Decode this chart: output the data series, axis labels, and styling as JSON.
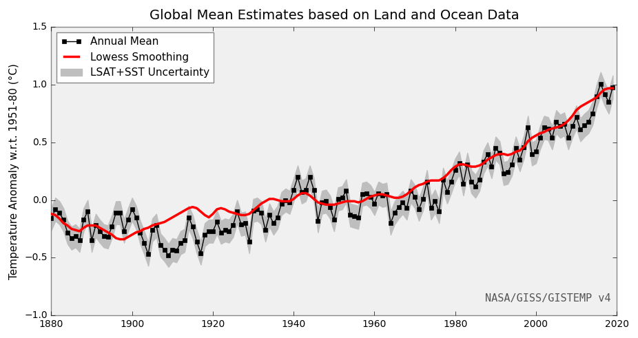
{
  "title": "Global Mean Estimates based on Land and Ocean Data",
  "ylabel": "Temperature Anomaly w.r.t. 1951-80 (°C)",
  "annotation": "NASA/GISS/GISTEMP v4",
  "xlim": [
    1880,
    2020
  ],
  "ylim": [
    -1.0,
    1.5
  ],
  "yticks": [
    -1.0,
    -0.5,
    0.0,
    0.5,
    1.0,
    1.5
  ],
  "xticks": [
    1880,
    1900,
    1920,
    1940,
    1960,
    1980,
    2000,
    2020
  ],
  "legend_labels": [
    "Annual Mean",
    "Lowess Smoothing",
    "LSAT+SST Uncertainty"
  ],
  "annual_mean": {
    "years": [
      1880,
      1881,
      1882,
      1883,
      1884,
      1885,
      1886,
      1887,
      1888,
      1889,
      1890,
      1891,
      1892,
      1893,
      1894,
      1895,
      1896,
      1897,
      1898,
      1899,
      1900,
      1901,
      1902,
      1903,
      1904,
      1905,
      1906,
      1907,
      1908,
      1909,
      1910,
      1911,
      1912,
      1913,
      1914,
      1915,
      1916,
      1917,
      1918,
      1919,
      1920,
      1921,
      1922,
      1923,
      1924,
      1925,
      1926,
      1927,
      1928,
      1929,
      1930,
      1931,
      1932,
      1933,
      1934,
      1935,
      1936,
      1937,
      1938,
      1939,
      1940,
      1941,
      1942,
      1943,
      1944,
      1945,
      1946,
      1947,
      1948,
      1949,
      1950,
      1951,
      1952,
      1953,
      1954,
      1955,
      1956,
      1957,
      1958,
      1959,
      1960,
      1961,
      1962,
      1963,
      1964,
      1965,
      1966,
      1967,
      1968,
      1969,
      1970,
      1971,
      1972,
      1973,
      1974,
      1975,
      1976,
      1977,
      1978,
      1979,
      1980,
      1981,
      1982,
      1983,
      1984,
      1985,
      1986,
      1987,
      1988,
      1989,
      1990,
      1991,
      1992,
      1993,
      1994,
      1995,
      1996,
      1997,
      1998,
      1999,
      2000,
      2001,
      2002,
      2003,
      2004,
      2005,
      2006,
      2007,
      2008,
      2009,
      2010,
      2011,
      2012,
      2013,
      2014,
      2015,
      2016,
      2017,
      2018,
      2019
    ],
    "values": [
      -0.16,
      -0.08,
      -0.11,
      -0.17,
      -0.28,
      -0.33,
      -0.31,
      -0.35,
      -0.17,
      -0.1,
      -0.35,
      -0.22,
      -0.27,
      -0.31,
      -0.32,
      -0.23,
      -0.11,
      -0.11,
      -0.27,
      -0.17,
      -0.08,
      -0.15,
      -0.28,
      -0.37,
      -0.47,
      -0.26,
      -0.22,
      -0.39,
      -0.43,
      -0.48,
      -0.43,
      -0.44,
      -0.37,
      -0.35,
      -0.15,
      -0.23,
      -0.36,
      -0.46,
      -0.3,
      -0.27,
      -0.27,
      -0.19,
      -0.28,
      -0.26,
      -0.27,
      -0.22,
      -0.1,
      -0.21,
      -0.2,
      -0.36,
      -0.09,
      -0.08,
      -0.11,
      -0.26,
      -0.13,
      -0.2,
      -0.15,
      -0.03,
      -0.0,
      -0.02,
      0.09,
      0.2,
      0.07,
      0.09,
      0.2,
      0.09,
      -0.18,
      -0.02,
      -0.01,
      -0.06,
      -0.17,
      0.01,
      0.02,
      0.08,
      -0.13,
      -0.14,
      -0.15,
      0.05,
      0.06,
      0.03,
      -0.03,
      0.06,
      0.04,
      0.05,
      -0.2,
      -0.11,
      -0.06,
      -0.02,
      -0.07,
      0.08,
      0.03,
      -0.08,
      0.01,
      0.16,
      -0.07,
      -0.01,
      -0.1,
      0.18,
      0.07,
      0.16,
      0.26,
      0.32,
      0.14,
      0.31,
      0.16,
      0.12,
      0.18,
      0.33,
      0.4,
      0.29,
      0.45,
      0.41,
      0.23,
      0.24,
      0.31,
      0.45,
      0.35,
      0.46,
      0.63,
      0.4,
      0.42,
      0.54,
      0.63,
      0.62,
      0.54,
      0.68,
      0.64,
      0.66,
      0.54,
      0.64,
      0.72,
      0.61,
      0.65,
      0.68,
      0.75,
      0.9,
      1.01,
      0.92,
      0.85,
      0.98
    ]
  },
  "uncertainty": {
    "years": [
      1880,
      1881,
      1882,
      1883,
      1884,
      1885,
      1886,
      1887,
      1888,
      1889,
      1890,
      1891,
      1892,
      1893,
      1894,
      1895,
      1896,
      1897,
      1898,
      1899,
      1900,
      1901,
      1902,
      1903,
      1904,
      1905,
      1906,
      1907,
      1908,
      1909,
      1910,
      1911,
      1912,
      1913,
      1914,
      1915,
      1916,
      1917,
      1918,
      1919,
      1920,
      1921,
      1922,
      1923,
      1924,
      1925,
      1926,
      1927,
      1928,
      1929,
      1930,
      1931,
      1932,
      1933,
      1934,
      1935,
      1936,
      1937,
      1938,
      1939,
      1940,
      1941,
      1942,
      1943,
      1944,
      1945,
      1946,
      1947,
      1948,
      1949,
      1950,
      1951,
      1952,
      1953,
      1954,
      1955,
      1956,
      1957,
      1958,
      1959,
      1960,
      1961,
      1962,
      1963,
      1964,
      1965,
      1966,
      1967,
      1968,
      1969,
      1970,
      1971,
      1972,
      1973,
      1974,
      1975,
      1976,
      1977,
      1978,
      1979,
      1980,
      1981,
      1982,
      1983,
      1984,
      1985,
      1986,
      1987,
      1988,
      1989,
      1990,
      1991,
      1992,
      1993,
      1994,
      1995,
      1996,
      1997,
      1998,
      1999,
      2000,
      2001,
      2002,
      2003,
      2004,
      2005,
      2006,
      2007,
      2008,
      2009,
      2010,
      2011,
      2012,
      2013,
      2014,
      2015,
      2016,
      2017,
      2018,
      2019
    ],
    "lower": [
      -0.26,
      -0.18,
      -0.21,
      -0.27,
      -0.38,
      -0.43,
      -0.41,
      -0.45,
      -0.27,
      -0.2,
      -0.45,
      -0.32,
      -0.37,
      -0.41,
      -0.42,
      -0.33,
      -0.21,
      -0.21,
      -0.37,
      -0.27,
      -0.18,
      -0.25,
      -0.38,
      -0.47,
      -0.57,
      -0.36,
      -0.32,
      -0.49,
      -0.53,
      -0.58,
      -0.53,
      -0.54,
      -0.47,
      -0.45,
      -0.25,
      -0.33,
      -0.46,
      -0.56,
      -0.4,
      -0.37,
      -0.37,
      -0.29,
      -0.38,
      -0.36,
      -0.37,
      -0.32,
      -0.2,
      -0.31,
      -0.3,
      -0.46,
      -0.19,
      -0.18,
      -0.21,
      -0.36,
      -0.23,
      -0.3,
      -0.25,
      -0.13,
      -0.1,
      -0.12,
      -0.01,
      0.1,
      -0.03,
      -0.01,
      0.1,
      -0.01,
      -0.28,
      -0.12,
      -0.11,
      -0.16,
      -0.27,
      -0.09,
      -0.08,
      -0.02,
      -0.23,
      -0.24,
      -0.25,
      -0.05,
      -0.04,
      -0.07,
      -0.13,
      -0.04,
      -0.06,
      -0.05,
      -0.3,
      -0.21,
      -0.16,
      -0.12,
      -0.17,
      -0.02,
      -0.07,
      -0.18,
      -0.09,
      0.06,
      -0.17,
      -0.11,
      -0.2,
      0.08,
      -0.03,
      0.06,
      0.16,
      0.22,
      0.04,
      0.21,
      0.06,
      0.02,
      0.08,
      0.23,
      0.3,
      0.19,
      0.35,
      0.31,
      0.13,
      0.14,
      0.21,
      0.35,
      0.25,
      0.36,
      0.53,
      0.3,
      0.32,
      0.44,
      0.53,
      0.52,
      0.44,
      0.58,
      0.54,
      0.56,
      0.44,
      0.54,
      0.62,
      0.51,
      0.55,
      0.58,
      0.65,
      0.8,
      0.91,
      0.82,
      0.75,
      0.88
    ],
    "upper": [
      -0.06,
      0.02,
      -0.01,
      -0.07,
      -0.18,
      -0.23,
      -0.21,
      -0.25,
      -0.07,
      0.0,
      -0.25,
      -0.12,
      -0.17,
      -0.21,
      -0.22,
      -0.13,
      -0.01,
      -0.01,
      -0.17,
      -0.07,
      0.02,
      -0.05,
      -0.18,
      -0.27,
      -0.37,
      -0.16,
      -0.12,
      -0.29,
      -0.33,
      -0.38,
      -0.33,
      -0.34,
      -0.27,
      -0.25,
      -0.05,
      -0.13,
      -0.26,
      -0.36,
      -0.2,
      -0.17,
      -0.17,
      -0.09,
      -0.18,
      -0.16,
      -0.17,
      -0.12,
      0.0,
      -0.11,
      -0.1,
      -0.26,
      0.01,
      0.02,
      -0.01,
      -0.16,
      -0.03,
      -0.1,
      -0.05,
      0.07,
      0.1,
      0.08,
      0.19,
      0.3,
      0.17,
      0.19,
      0.3,
      0.19,
      -0.08,
      0.08,
      0.09,
      0.04,
      -0.07,
      0.11,
      0.12,
      0.18,
      -0.03,
      -0.04,
      -0.05,
      0.15,
      0.16,
      0.13,
      0.07,
      0.16,
      0.14,
      0.15,
      -0.1,
      -0.01,
      0.04,
      0.08,
      0.03,
      0.18,
      0.13,
      0.02,
      0.11,
      0.26,
      0.03,
      0.09,
      0.0,
      0.28,
      0.17,
      0.26,
      0.36,
      0.42,
      0.24,
      0.41,
      0.26,
      0.22,
      0.28,
      0.43,
      0.5,
      0.39,
      0.55,
      0.51,
      0.33,
      0.34,
      0.41,
      0.55,
      0.45,
      0.56,
      0.73,
      0.5,
      0.52,
      0.64,
      0.73,
      0.72,
      0.64,
      0.78,
      0.74,
      0.76,
      0.64,
      0.74,
      0.82,
      0.71,
      0.75,
      0.78,
      0.85,
      1.0,
      1.11,
      1.02,
      0.95,
      1.08
    ]
  },
  "lowess": {
    "years": [
      1880,
      1881,
      1882,
      1883,
      1884,
      1885,
      1886,
      1887,
      1888,
      1889,
      1890,
      1891,
      1892,
      1893,
      1894,
      1895,
      1896,
      1897,
      1898,
      1899,
      1900,
      1901,
      1902,
      1903,
      1904,
      1905,
      1906,
      1907,
      1908,
      1909,
      1910,
      1911,
      1912,
      1913,
      1914,
      1915,
      1916,
      1917,
      1918,
      1919,
      1920,
      1921,
      1922,
      1923,
      1924,
      1925,
      1926,
      1927,
      1928,
      1929,
      1930,
      1931,
      1932,
      1933,
      1934,
      1935,
      1936,
      1937,
      1938,
      1939,
      1940,
      1941,
      1942,
      1943,
      1944,
      1945,
      1946,
      1947,
      1948,
      1949,
      1950,
      1951,
      1952,
      1953,
      1954,
      1955,
      1956,
      1957,
      1958,
      1959,
      1960,
      1961,
      1962,
      1963,
      1964,
      1965,
      1966,
      1967,
      1968,
      1969,
      1970,
      1971,
      1972,
      1973,
      1974,
      1975,
      1976,
      1977,
      1978,
      1979,
      1980,
      1981,
      1982,
      1983,
      1984,
      1985,
      1986,
      1987,
      1988,
      1989,
      1990,
      1991,
      1992,
      1993,
      1994,
      1995,
      1996,
      1997,
      1998,
      1999,
      2000,
      2001,
      2002,
      2003,
      2004,
      2005,
      2006,
      2007,
      2008,
      2009,
      2010,
      2011,
      2012,
      2013,
      2014,
      2015,
      2016,
      2017,
      2018,
      2019
    ],
    "values": [
      -0.12,
      -0.13,
      -0.16,
      -0.2,
      -0.22,
      -0.25,
      -0.26,
      -0.27,
      -0.24,
      -0.22,
      -0.22,
      -0.22,
      -0.24,
      -0.26,
      -0.28,
      -0.3,
      -0.33,
      -0.34,
      -0.34,
      -0.32,
      -0.3,
      -0.28,
      -0.27,
      -0.25,
      -0.24,
      -0.22,
      -0.21,
      -0.2,
      -0.19,
      -0.17,
      -0.15,
      -0.13,
      -0.11,
      -0.09,
      -0.07,
      -0.06,
      -0.07,
      -0.1,
      -0.13,
      -0.15,
      -0.12,
      -0.08,
      -0.07,
      -0.08,
      -0.1,
      -0.11,
      -0.12,
      -0.13,
      -0.13,
      -0.12,
      -0.09,
      -0.06,
      -0.03,
      -0.01,
      0.01,
      0.01,
      0.0,
      -0.01,
      -0.01,
      -0.01,
      0.01,
      0.04,
      0.06,
      0.06,
      0.04,
      0.01,
      -0.02,
      -0.03,
      -0.04,
      -0.04,
      -0.04,
      -0.03,
      -0.02,
      -0.01,
      -0.01,
      -0.01,
      -0.02,
      -0.01,
      0.01,
      0.03,
      0.04,
      0.05,
      0.05,
      0.04,
      0.03,
      0.02,
      0.02,
      0.03,
      0.05,
      0.08,
      0.11,
      0.13,
      0.14,
      0.16,
      0.17,
      0.17,
      0.17,
      0.19,
      0.22,
      0.26,
      0.29,
      0.31,
      0.31,
      0.3,
      0.29,
      0.29,
      0.3,
      0.32,
      0.35,
      0.37,
      0.39,
      0.4,
      0.4,
      0.39,
      0.4,
      0.42,
      0.43,
      0.46,
      0.51,
      0.54,
      0.56,
      0.58,
      0.59,
      0.61,
      0.62,
      0.63,
      0.64,
      0.66,
      0.69,
      0.73,
      0.78,
      0.81,
      0.83,
      0.85,
      0.87,
      0.89,
      0.93,
      0.96,
      0.97,
      0.97
    ]
  },
  "line_color": "#000000",
  "smooth_color": "#ff0000",
  "uncertainty_color": "#bebebe",
  "marker": "s",
  "markersize": 4,
  "linewidth": 1.0,
  "smooth_linewidth": 2.5,
  "plot_bgcolor": "#f0f0f0",
  "fig_bgcolor": "#e8e8e8",
  "title_fontsize": 14,
  "label_fontsize": 11,
  "tick_fontsize": 10,
  "annotation_fontsize": 11
}
